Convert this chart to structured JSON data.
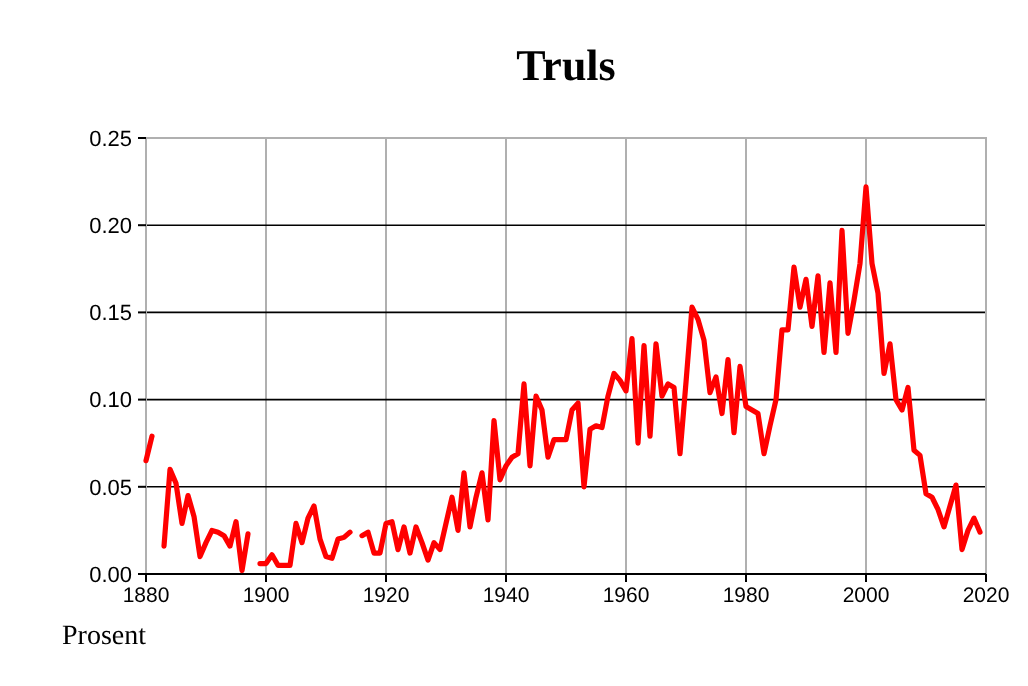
{
  "chart_data": {
    "type": "line",
    "title": "Truls",
    "ylabel": "Prosent",
    "x": [
      1880,
      1881,
      1882,
      1883,
      1884,
      1885,
      1886,
      1887,
      1888,
      1889,
      1890,
      1891,
      1892,
      1893,
      1894,
      1895,
      1896,
      1897,
      1898,
      1899,
      1900,
      1901,
      1902,
      1903,
      1904,
      1905,
      1906,
      1907,
      1908,
      1909,
      1910,
      1911,
      1912,
      1913,
      1914,
      1915,
      1916,
      1917,
      1918,
      1919,
      1920,
      1921,
      1922,
      1923,
      1924,
      1925,
      1926,
      1927,
      1928,
      1929,
      1930,
      1931,
      1932,
      1933,
      1934,
      1935,
      1936,
      1937,
      1938,
      1939,
      1940,
      1941,
      1942,
      1943,
      1944,
      1945,
      1946,
      1947,
      1948,
      1949,
      1950,
      1951,
      1952,
      1953,
      1954,
      1955,
      1956,
      1957,
      1958,
      1959,
      1960,
      1961,
      1962,
      1963,
      1964,
      1965,
      1966,
      1967,
      1968,
      1969,
      1970,
      1971,
      1972,
      1973,
      1974,
      1975,
      1976,
      1977,
      1978,
      1979,
      1980,
      1981,
      1982,
      1983,
      1984,
      1985,
      1986,
      1987,
      1988,
      1989,
      1990,
      1991,
      1992,
      1993,
      1994,
      1995,
      1996,
      1997,
      1998,
      1999,
      2000,
      2001,
      2002,
      2003,
      2004,
      2005,
      2006,
      2007,
      2008,
      2009,
      2010,
      2011,
      2012,
      2013,
      2014,
      2015,
      2016,
      2017,
      2018,
      2019
    ],
    "series": [
      {
        "color": "#ff0000",
        "values": [
          0.065,
          0.079,
          null,
          0.016,
          0.06,
          0.052,
          0.029,
          0.045,
          0.033,
          0.01,
          0.018,
          0.025,
          0.024,
          0.022,
          0.016,
          0.03,
          0.002,
          0.023,
          null,
          0.006,
          0.006,
          0.011,
          0.005,
          0.005,
          0.005,
          0.029,
          0.018,
          0.032,
          0.039,
          0.02,
          0.01,
          0.009,
          0.02,
          0.021,
          0.024,
          null,
          0.022,
          0.024,
          0.012,
          0.012,
          0.029,
          0.03,
          0.014,
          0.027,
          0.012,
          0.027,
          0.018,
          0.008,
          0.018,
          0.014,
          0.029,
          0.044,
          0.025,
          0.058,
          0.027,
          0.044,
          0.058,
          0.031,
          0.088,
          0.054,
          0.062,
          0.067,
          0.069,
          0.109,
          0.062,
          0.102,
          0.094,
          0.067,
          0.077,
          0.077,
          0.077,
          0.094,
          0.098,
          0.05,
          0.083,
          0.085,
          0.084,
          0.102,
          0.115,
          0.111,
          0.105,
          0.135,
          0.075,
          0.131,
          0.079,
          0.132,
          0.102,
          0.109,
          0.107,
          0.069,
          0.11,
          0.153,
          0.146,
          0.134,
          0.104,
          0.113,
          0.092,
          0.123,
          0.081,
          0.119,
          0.096,
          0.094,
          0.092,
          0.069,
          0.085,
          0.1,
          0.14,
          0.14,
          0.176,
          0.153,
          0.169,
          0.142,
          0.171,
          0.127,
          0.167,
          0.127,
          0.197,
          0.138,
          0.157,
          0.178,
          0.222,
          0.178,
          0.161,
          0.115,
          0.132,
          0.1,
          0.094,
          0.107,
          0.071,
          0.068,
          0.046,
          0.044,
          0.037,
          0.027,
          0.039,
          0.051,
          0.014,
          0.025,
          0.032,
          0.024
        ]
      }
    ],
    "xlim": [
      1880,
      2020
    ],
    "xticks": [
      1880,
      1900,
      1920,
      1940,
      1960,
      1980,
      2000,
      2020
    ],
    "ylim": [
      0,
      0.25
    ],
    "yticks": [
      {
        "value": 0,
        "label": "0.00"
      },
      {
        "value": 0.05,
        "label": "0.05"
      },
      {
        "value": 0.1,
        "label": "0.10"
      },
      {
        "value": 0.15,
        "label": "0.15"
      },
      {
        "value": 0.2,
        "label": "0.20"
      },
      {
        "value": 0.25,
        "label": "0.25"
      }
    ],
    "grid": true,
    "line_style": "solid",
    "marker": "none"
  }
}
